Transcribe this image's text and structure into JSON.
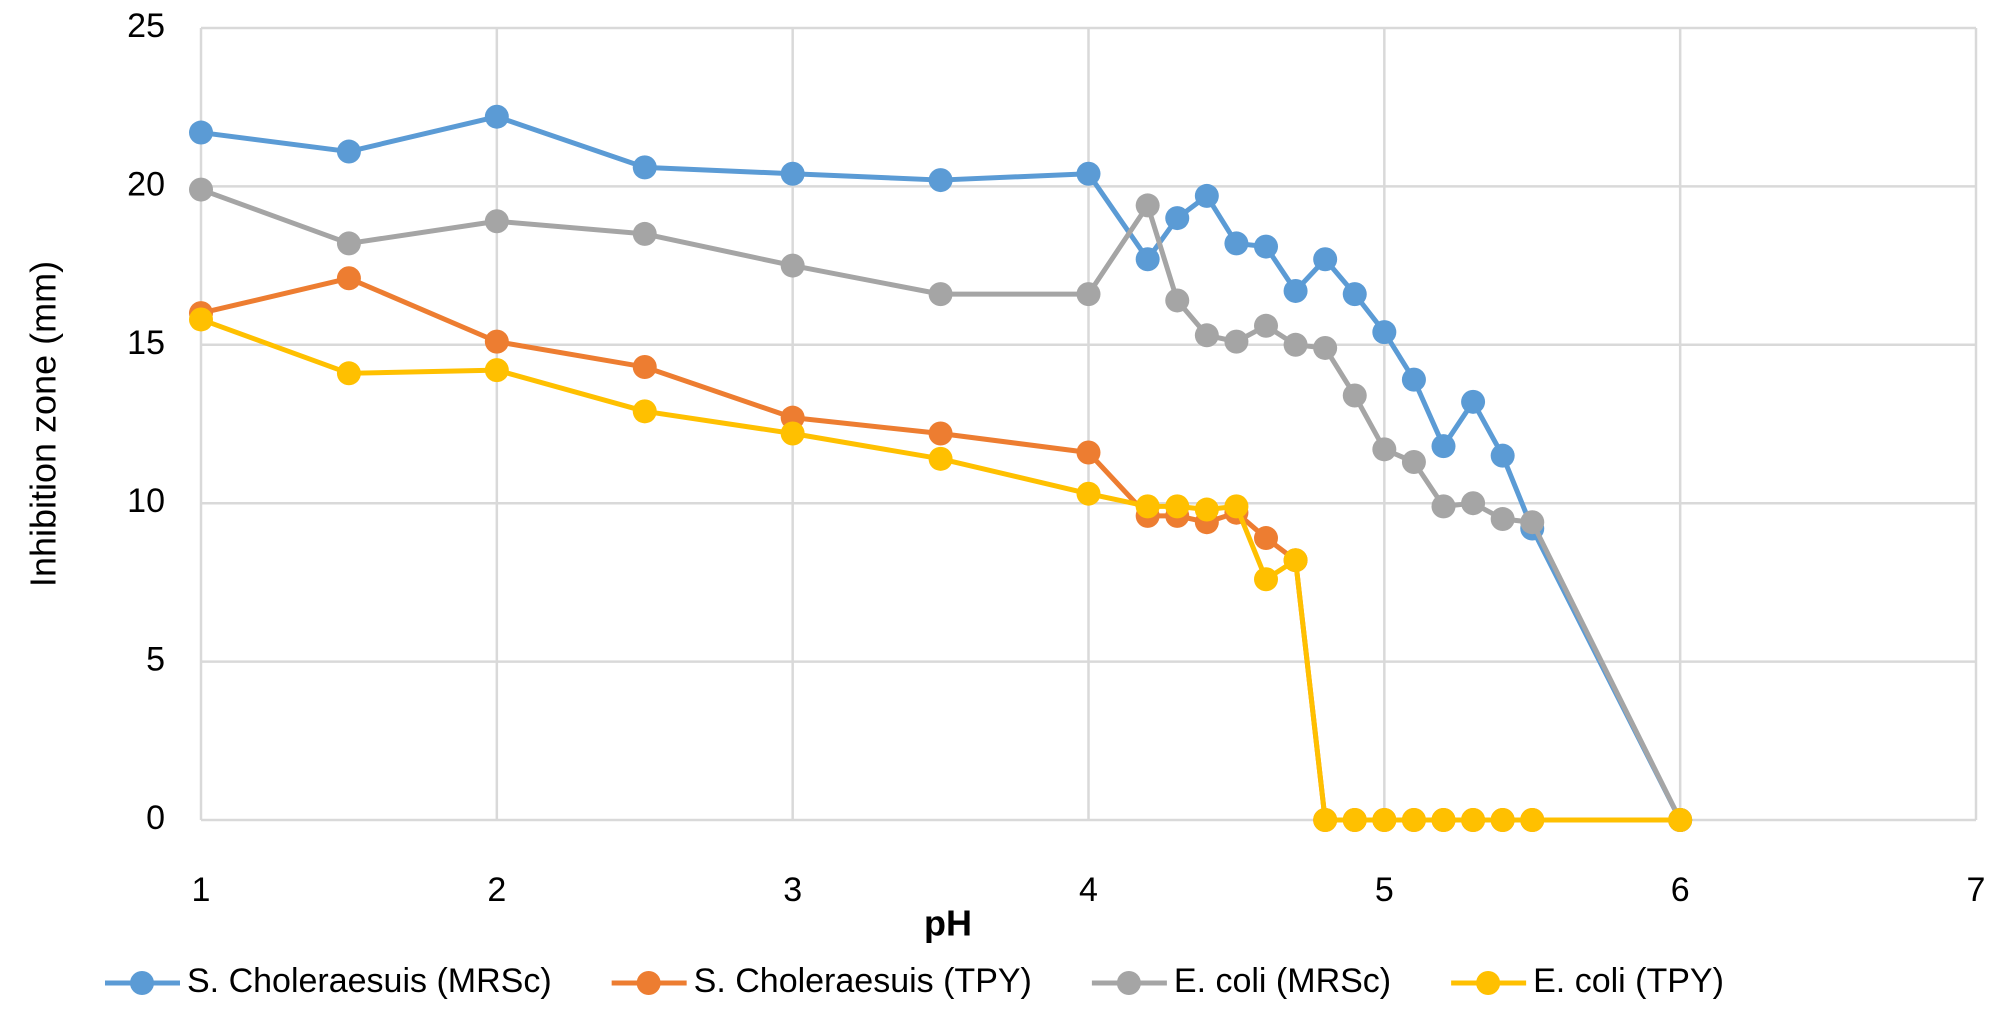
{
  "chart_data": {
    "type": "line",
    "x_label": "pH",
    "y_label": "Inhibition zone (mm)",
    "x": [
      1,
      1.5,
      2,
      2.5,
      3,
      3.5,
      4,
      4.2,
      4.3,
      4.4,
      4.5,
      4.6,
      4.7,
      4.8,
      4.9,
      5,
      5.1,
      5.2,
      5.3,
      5.4,
      5.5,
      6
    ],
    "series": [
      {
        "name": "S. Choleraesuis (MRSc)",
        "color": "#5b9bd5",
        "values": [
          21.7,
          21.1,
          22.2,
          20.6,
          20.4,
          20.2,
          20.4,
          17.7,
          19.0,
          19.7,
          18.2,
          18.1,
          16.7,
          17.7,
          16.6,
          15.4,
          13.9,
          11.8,
          13.2,
          11.5,
          9.2,
          0
        ]
      },
      {
        "name": "S. Choleraesuis (TPY)",
        "color": "#ed7d31",
        "values": [
          16.0,
          17.1,
          15.1,
          14.3,
          12.7,
          12.2,
          11.6,
          9.6,
          9.6,
          9.4,
          9.7,
          8.9,
          8.2,
          0,
          0,
          0,
          0,
          0,
          0,
          0,
          0,
          0
        ]
      },
      {
        "name": "E. coli (MRSc)",
        "color": "#a5a5a5",
        "values": [
          19.9,
          18.2,
          18.9,
          18.5,
          17.5,
          16.6,
          16.6,
          19.4,
          16.4,
          15.3,
          15.1,
          15.6,
          15.0,
          14.9,
          13.4,
          11.7,
          11.3,
          9.9,
          10.0,
          9.5,
          9.4,
          0
        ]
      },
      {
        "name": "E. coli (TPY)",
        "color": "#ffc000",
        "values": [
          15.8,
          14.1,
          14.2,
          12.9,
          12.2,
          11.4,
          10.3,
          9.9,
          9.9,
          9.8,
          9.9,
          7.6,
          8.2,
          0,
          0,
          0,
          0,
          0,
          0,
          0,
          0,
          0
        ]
      }
    ],
    "xlim": [
      1,
      7
    ],
    "xticks": [
      1,
      2,
      3,
      4,
      5,
      6,
      7
    ],
    "ylim": [
      0,
      25
    ],
    "yticks": [
      0,
      5,
      10,
      15,
      20,
      25
    ],
    "grid": true,
    "legend": "bottom"
  }
}
